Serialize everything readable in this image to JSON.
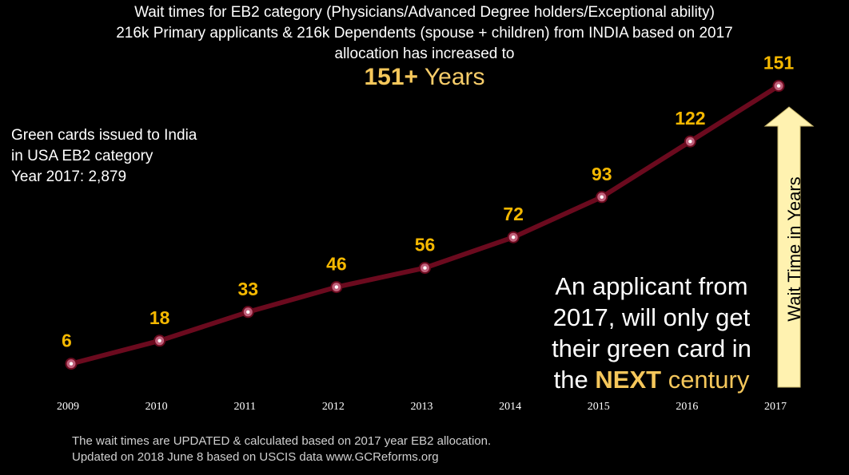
{
  "title": {
    "line1": "Wait times for EB2 category (Physicians/Advanced Degree holders/Exceptional ability)",
    "line2": "216k Primary applicants & 216k Dependents (spouse + children) from INDIA based on 2017",
    "line3": "allocation has  increased to",
    "headline_number": "151+",
    "headline_unit": "Years"
  },
  "side_note": {
    "line1": "Green cards issued to India",
    "line2": "in USA EB2 category",
    "line3": "Year 2017: 2,879"
  },
  "callout": {
    "line1": "An applicant from",
    "line2": "2017, will only get",
    "line3": "their green card in",
    "line4_prefix": "the",
    "line4_bold": "NEXT",
    "line4_suffix": "century"
  },
  "footer": {
    "line1": "The wait times are UPDATED & calculated based on 2017 year EB2 allocation.",
    "line2": "Updated on 2018 June 8  based on USCIS data   www.GCReforms.org"
  },
  "colors": {
    "background": "#000000",
    "line": "#6b0a1e",
    "marker_fill": "#c0607a",
    "value_label": "#f5b800",
    "arrow_fill": "#fff2b0",
    "highlight": "#f5c75b"
  },
  "chart_data": {
    "type": "line",
    "title": "Wait times for EB2 category",
    "xlabel": "",
    "ylabel": "Wait Time in Years",
    "categories": [
      "2009",
      "2010",
      "2011",
      "2012",
      "2013",
      "2014",
      "2015",
      "2016",
      "2017"
    ],
    "series": [
      {
        "name": "Wait Time in Years",
        "values": [
          6,
          18,
          33,
          46,
          56,
          72,
          93,
          122,
          151
        ]
      }
    ],
    "data_labels": [
      "6",
      "18",
      "33",
      "46",
      "56",
      "72",
      "93",
      "122",
      "151"
    ],
    "grid": false,
    "ylim": [
      0,
      160
    ]
  }
}
